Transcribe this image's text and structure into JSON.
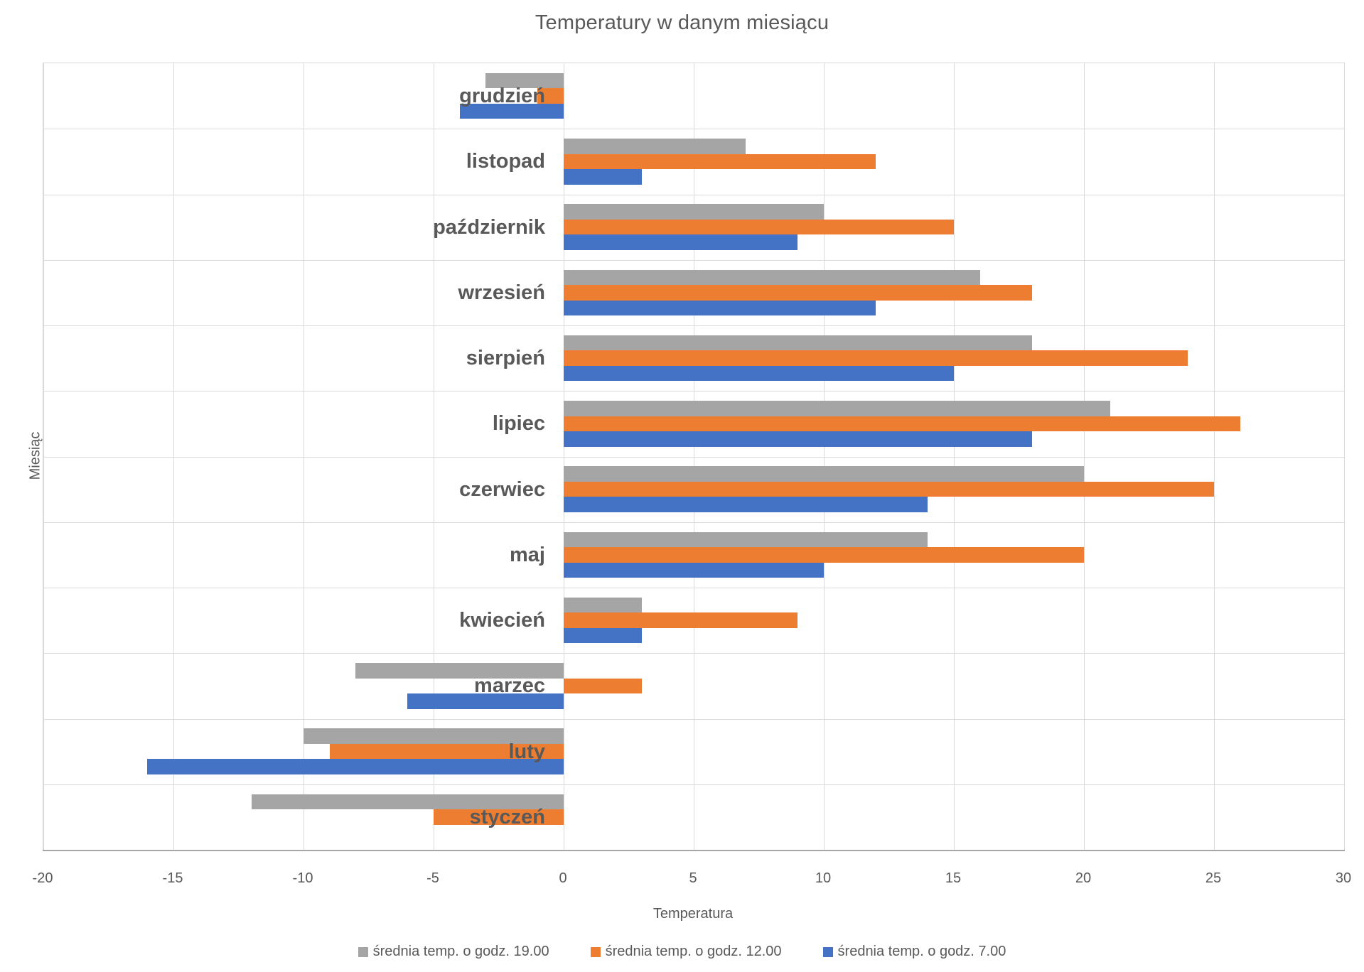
{
  "title": "Temperatury w danym miesiącu",
  "x_axis": {
    "label": "Temperatura",
    "min": -20,
    "max": 30,
    "step": 5,
    "ticks": [
      "-20",
      "-15",
      "-10",
      "-5",
      "0",
      "5",
      "10",
      "15",
      "20",
      "25",
      "30"
    ]
  },
  "y_axis": {
    "label": "Miesiąc"
  },
  "colors": {
    "series_19": "#A5A5A5",
    "series_12": "#ED7D31",
    "series_07": "#4472C4",
    "gridline": "#D9D9D9",
    "text": "#595959"
  },
  "chart_data": {
    "type": "bar",
    "orientation": "horizontal",
    "title": "Temperatury w danym miesiącu",
    "xlabel": "Temperatura",
    "ylabel": "Miesiąc",
    "xlim": [
      -20,
      30
    ],
    "grid": true,
    "legend_position": "bottom",
    "categories_top_to_bottom": [
      "grudzień",
      "listopad",
      "październik",
      "wrzesień",
      "sierpień",
      "lipiec",
      "czerwiec",
      "maj",
      "kwiecień",
      "marzec",
      "luty",
      "styczeń"
    ],
    "series": [
      {
        "name": "średnia temp. o godz. 19.00",
        "color": "#A5A5A5",
        "values": [
          -3,
          7,
          10,
          16,
          18,
          21,
          20,
          14,
          3,
          -8,
          -10,
          -12
        ]
      },
      {
        "name": "średnia temp. o godz. 12.00",
        "color": "#ED7D31",
        "values": [
          -1,
          12,
          15,
          18,
          24,
          26,
          25,
          20,
          9,
          3,
          -9,
          -5
        ]
      },
      {
        "name": "średnia temp. o godz. 7.00",
        "color": "#4472C4",
        "values": [
          -4,
          3,
          9,
          12,
          15,
          18,
          14,
          10,
          3,
          -6,
          -16,
          0
        ]
      }
    ]
  }
}
